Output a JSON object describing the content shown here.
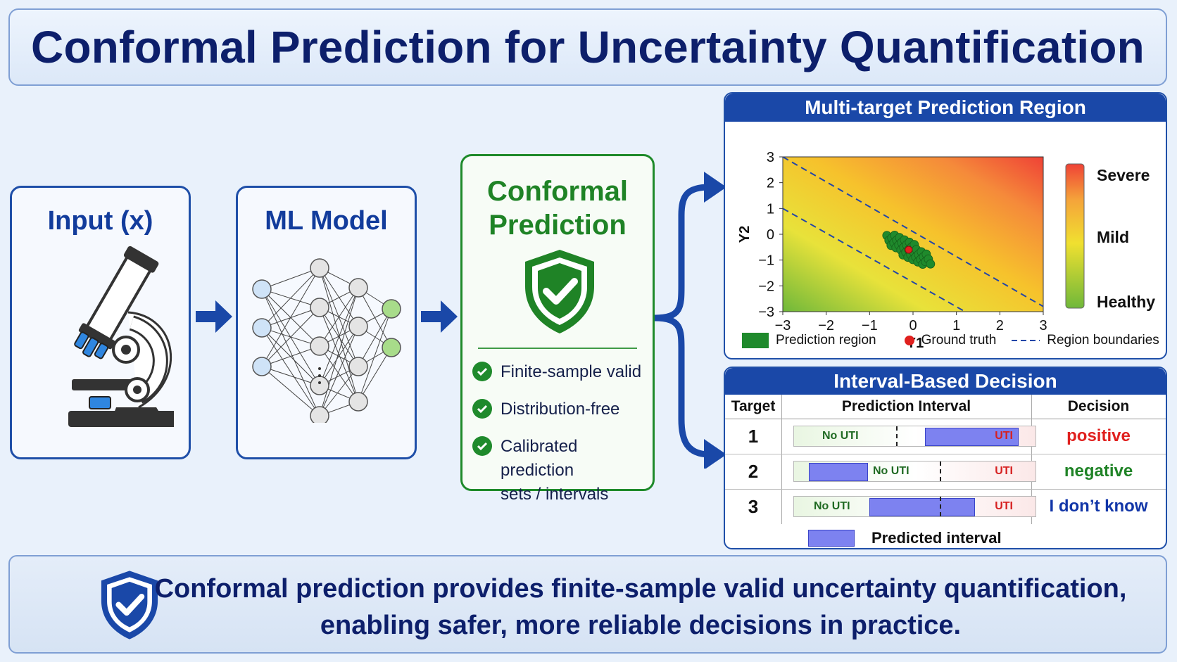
{
  "title": "Conformal Prediction for Uncertainty Quantification",
  "input_box": {
    "title": "Input (x)",
    "icon": "microscope-icon"
  },
  "model_box": {
    "title": "ML Model",
    "icon": "neural-network-icon"
  },
  "conformal_box": {
    "title_line1": "Conformal",
    "title_line2": "Prediction",
    "icon": "shield-check-icon",
    "features": [
      "Finite-sample valid",
      "Distribution-free",
      "Calibrated prediction",
      "sets / intervals"
    ]
  },
  "region_chart": {
    "title": "Multi-target Prediction Region",
    "xlabel": "Y1",
    "ylabel": "Y2",
    "x_ticks": [
      "−3",
      "−2",
      "−1",
      "0",
      "1",
      "2",
      "3"
    ],
    "y_ticks": [
      "3",
      "2",
      "1",
      "0",
      "−1",
      "−2",
      "−3"
    ],
    "colorbar_labels": [
      "Severe",
      "Mild",
      "Healthy"
    ],
    "legend": [
      "Prediction region",
      "Ground truth",
      "Region boundaries"
    ],
    "colors": {
      "region": "#1f8a2c",
      "truth": "#e0201e",
      "boundary": "#2246a8"
    }
  },
  "chart_data": {
    "type": "scatter",
    "title": "Multi-target Prediction Region",
    "xlabel": "Y1",
    "ylabel": "Y2",
    "xlim": [
      -3,
      3
    ],
    "ylim": [
      -3,
      3
    ],
    "ground_truth": {
      "x": -0.1,
      "y": -0.6
    },
    "prediction_region_center": {
      "x": -0.1,
      "y": -0.6
    },
    "boundaries": [
      {
        "name": "upper",
        "from": [
          -3,
          3
        ],
        "to": [
          3,
          -2.8
        ]
      },
      {
        "name": "lower",
        "from": [
          -3,
          1
        ],
        "to": [
          1.2,
          -3
        ]
      }
    ],
    "legend": [
      "Prediction region",
      "Ground truth",
      "Region boundaries"
    ]
  },
  "decision_table": {
    "title": "Interval-Based Decision",
    "headers": [
      "Target",
      "Prediction Interval",
      "Decision"
    ],
    "rows": [
      {
        "target": "1",
        "left_label": "No UTI",
        "right_label": "UTI",
        "decision": "positive",
        "decision_color": "#e0201e",
        "interval": [
          0.54,
          0.92
        ],
        "threshold": 0.42
      },
      {
        "target": "2",
        "left_label": "No UTI",
        "right_label": "UTI",
        "decision": "negative",
        "decision_color": "#1f8326",
        "interval": [
          0.06,
          0.3
        ],
        "threshold": 0.6
      },
      {
        "target": "3",
        "left_label": "No UTI",
        "right_label": "UTI",
        "decision": "I don’t know",
        "decision_color": "#1236a8",
        "interval": [
          0.31,
          0.74
        ],
        "threshold": 0.6
      }
    ],
    "legend": "Predicted interval"
  },
  "bottom": {
    "line1": "Conformal prediction provides finite-sample valid uncertainty quantification,",
    "line2": "enabling safer, more reliable decisions in practice.",
    "icon": "shield-check-icon"
  }
}
